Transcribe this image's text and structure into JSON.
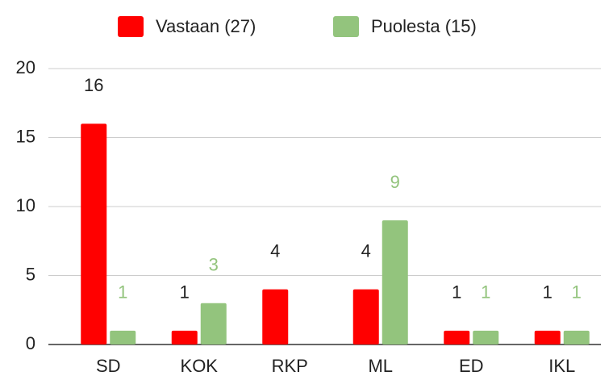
{
  "chart_data": {
    "type": "bar",
    "categories": [
      "SD",
      "KOK",
      "RKP",
      "ML",
      "ED",
      "IKL"
    ],
    "series": [
      {
        "name": "Vastaan (27)",
        "color": "#ff0000",
        "label_color": "#222222",
        "values": [
          16,
          1,
          4,
          4,
          1,
          1
        ]
      },
      {
        "name": "Puolesta (15)",
        "color": "#93c47d",
        "label_color": "#93c47d",
        "values": [
          1,
          3,
          null,
          9,
          1,
          1
        ]
      }
    ],
    "ylim": [
      0,
      20
    ],
    "yticks": [
      0,
      5,
      10,
      15,
      20
    ],
    "grid": true,
    "legend": "top"
  }
}
